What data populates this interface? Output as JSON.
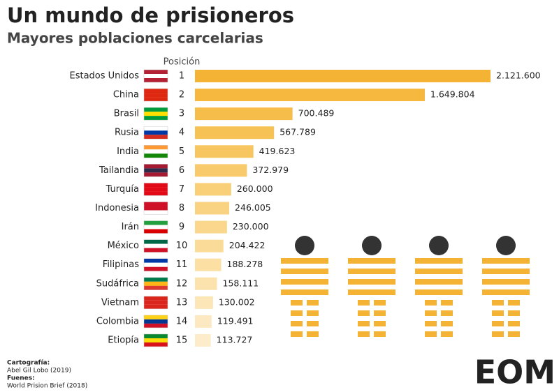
{
  "chart_data": {
    "type": "bar",
    "orientation": "horizontal",
    "title": "Un mundo de prisioneros",
    "subtitle": "Mayores poblaciones carcelarias",
    "rank_header": "Posición",
    "categories": [
      "Estados Unidos",
      "China",
      "Brasil",
      "Rusia",
      "India",
      "Tailandia",
      "Turquía",
      "Indonesia",
      "Irán",
      "México",
      "Filipinas",
      "Sudáfrica",
      "Vietnam",
      "Colombia",
      "Etiopía"
    ],
    "ranks": [
      1,
      2,
      3,
      4,
      5,
      6,
      7,
      8,
      9,
      10,
      11,
      12,
      13,
      14,
      15
    ],
    "values": [
      2121600,
      1649804,
      700489,
      567789,
      419623,
      372979,
      260000,
      246005,
      230000,
      204422,
      188278,
      158111,
      130002,
      119491,
      113727
    ],
    "value_labels": [
      "2.121.600",
      "1.649.804",
      "700.489",
      "567.789",
      "419.623",
      "372.979",
      "260.000",
      "246.005",
      "230.000",
      "204.422",
      "188.278",
      "158.111",
      "130.002",
      "119.491",
      "113.727"
    ],
    "colors": [
      "#f5b335",
      "#f6b83f",
      "#f7bd4a",
      "#f7c255",
      "#f8c660",
      "#f9ca6b",
      "#f9cf77",
      "#fad382",
      "#fad78d",
      "#fbdb98",
      "#fbdfa3",
      "#fce3ae",
      "#fce6b8",
      "#fde9c1",
      "#fdecca"
    ],
    "credits": [
      {
        "heading": "Cartografía:",
        "text": "Abel Gil Lobo (2019)"
      },
      {
        "heading": "Fuenes:",
        "text": "World Prision Brief (2018)"
      }
    ],
    "logo": "EOM"
  }
}
